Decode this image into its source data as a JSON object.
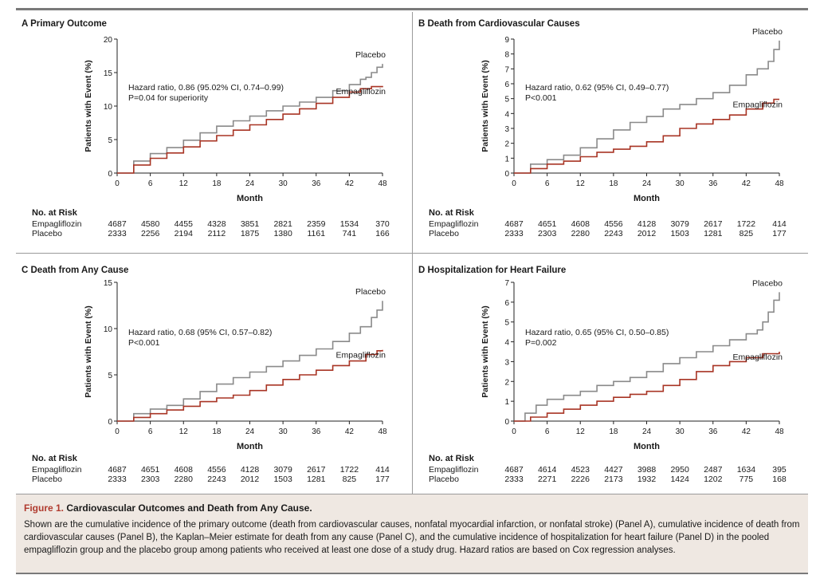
{
  "figure": {
    "caption_label": "Figure 1.",
    "caption_title": "Cardiovascular Outcomes and Death from Any Cause.",
    "caption_text": "Shown are the cumulative incidence of the primary outcome (death from cardiovascular causes, nonfatal myocardial infarction, or nonfatal stroke) (Panel A), cumulative incidence of death from cardiovascular causes (Panel B), the Kaplan–Meier estimate for death from any cause (Panel C), and the cumulative incidence of hospitalization for heart failure (Panel D) in the pooled empagliflozin group and the placebo group among patients who received at least one dose of a study drug. Hazard ratios are based on Cox regression analyses."
  },
  "colors": {
    "placebo": "#8a8a8a",
    "empagliflozin": "#a83424",
    "axis": "#222222"
  },
  "chart_data": [
    {
      "panel": "A",
      "type": "line",
      "title": "Primary Outcome",
      "xlabel": "Month",
      "ylabel": "Patients with Event (%)",
      "xlim": [
        0,
        48
      ],
      "ylim": [
        0,
        20
      ],
      "xticks": [
        0,
        6,
        12,
        18,
        24,
        30,
        36,
        42,
        48
      ],
      "yticks": [
        0,
        5,
        10,
        15,
        20
      ],
      "annotation": [
        "Hazard ratio, 0.86 (95.02% CI, 0.74–0.99)",
        "P=0.04 for superiority"
      ],
      "series": [
        {
          "name": "Placebo",
          "x": [
            0,
            3,
            6,
            9,
            12,
            15,
            18,
            21,
            24,
            27,
            30,
            33,
            36,
            39,
            42,
            44,
            45,
            46,
            47,
            48
          ],
          "y": [
            0,
            1.8,
            2.9,
            3.8,
            4.9,
            6.0,
            7.0,
            7.8,
            8.5,
            9.3,
            10.0,
            10.6,
            11.3,
            12.3,
            13.2,
            14.0,
            14.3,
            15.0,
            15.8,
            16.3
          ]
        },
        {
          "name": "Empagliflozin",
          "x": [
            0,
            3,
            6,
            9,
            12,
            15,
            18,
            21,
            24,
            27,
            30,
            33,
            36,
            39,
            42,
            44,
            46,
            48
          ],
          "y": [
            0,
            1.2,
            2.2,
            3.0,
            3.9,
            4.8,
            5.6,
            6.4,
            7.2,
            8.0,
            8.8,
            9.6,
            10.4,
            11.3,
            12.1,
            12.6,
            12.9,
            13.0
          ]
        }
      ],
      "risk": {
        "header": "No. at Risk",
        "rows": [
          {
            "label": "Empagliflozin",
            "values": [
              "4687",
              "4580",
              "4455",
              "4328",
              "3851",
              "2821",
              "2359",
              "1534",
              "370"
            ]
          },
          {
            "label": "Placebo",
            "values": [
              "2333",
              "2256",
              "2194",
              "2112",
              "1875",
              "1380",
              "1161",
              "741",
              "166"
            ]
          }
        ]
      }
    },
    {
      "panel": "B",
      "type": "line",
      "title": "Death from Cardiovascular Causes",
      "xlabel": "Month",
      "ylabel": "Patients with Event (%)",
      "xlim": [
        0,
        48
      ],
      "ylim": [
        0,
        9
      ],
      "xticks": [
        0,
        6,
        12,
        18,
        24,
        30,
        36,
        42,
        48
      ],
      "yticks": [
        0,
        1,
        2,
        3,
        4,
        5,
        6,
        7,
        8,
        9
      ],
      "annotation": [
        "Hazard ratio, 0.62 (95% CI, 0.49–0.77)",
        "P<0.001"
      ],
      "series": [
        {
          "name": "Placebo",
          "x": [
            0,
            3,
            6,
            9,
            12,
            15,
            18,
            21,
            24,
            27,
            30,
            33,
            36,
            39,
            42,
            44,
            46,
            47,
            48
          ],
          "y": [
            0,
            0.6,
            0.9,
            1.2,
            1.7,
            2.3,
            2.9,
            3.4,
            3.8,
            4.3,
            4.6,
            5.0,
            5.4,
            5.9,
            6.6,
            7.0,
            7.5,
            8.3,
            8.9
          ]
        },
        {
          "name": "Empagliflozin",
          "x": [
            0,
            3,
            6,
            9,
            12,
            15,
            18,
            21,
            24,
            27,
            30,
            33,
            36,
            39,
            42,
            45,
            47,
            48
          ],
          "y": [
            0,
            0.3,
            0.6,
            0.8,
            1.1,
            1.4,
            1.6,
            1.8,
            2.1,
            2.5,
            3.0,
            3.3,
            3.6,
            3.9,
            4.3,
            4.7,
            4.95,
            4.95
          ]
        }
      ],
      "risk": {
        "header": "No. at Risk",
        "rows": [
          {
            "label": "Empagliflozin",
            "values": [
              "4687",
              "4651",
              "4608",
              "4556",
              "4128",
              "3079",
              "2617",
              "1722",
              "414"
            ]
          },
          {
            "label": "Placebo",
            "values": [
              "2333",
              "2303",
              "2280",
              "2243",
              "2012",
              "1503",
              "1281",
              "825",
              "177"
            ]
          }
        ]
      }
    },
    {
      "panel": "C",
      "type": "line",
      "title": "Death from Any Cause",
      "xlabel": "Month",
      "ylabel": "Patients with Event (%)",
      "xlim": [
        0,
        48
      ],
      "ylim": [
        0,
        15
      ],
      "xticks": [
        0,
        6,
        12,
        18,
        24,
        30,
        36,
        42,
        48
      ],
      "yticks": [
        0,
        5,
        10,
        15
      ],
      "annotation": [
        "Hazard ratio, 0.68 (95% CI, 0.57–0.82)",
        "P<0.001"
      ],
      "series": [
        {
          "name": "Placebo",
          "x": [
            0,
            3,
            6,
            9,
            12,
            15,
            18,
            21,
            24,
            27,
            30,
            33,
            36,
            39,
            42,
            44,
            46,
            47,
            48
          ],
          "y": [
            0,
            0.8,
            1.3,
            1.7,
            2.4,
            3.2,
            4.0,
            4.7,
            5.3,
            5.9,
            6.5,
            7.1,
            7.8,
            8.6,
            9.5,
            10.2,
            11.2,
            12.0,
            13.0
          ]
        },
        {
          "name": "Empagliflozin",
          "x": [
            0,
            3,
            6,
            9,
            12,
            15,
            18,
            21,
            24,
            27,
            30,
            33,
            36,
            39,
            42,
            45,
            47,
            48
          ],
          "y": [
            0,
            0.4,
            0.8,
            1.2,
            1.6,
            2.1,
            2.5,
            2.8,
            3.3,
            3.9,
            4.5,
            5.0,
            5.5,
            6.0,
            6.5,
            7.2,
            7.6,
            7.7
          ]
        }
      ],
      "risk": {
        "header": "No. at Risk",
        "rows": [
          {
            "label": "Empagliflozin",
            "values": [
              "4687",
              "4651",
              "4608",
              "4556",
              "4128",
              "3079",
              "2617",
              "1722",
              "414"
            ]
          },
          {
            "label": "Placebo",
            "values": [
              "2333",
              "2303",
              "2280",
              "2243",
              "2012",
              "1503",
              "1281",
              "825",
              "177"
            ]
          }
        ]
      }
    },
    {
      "panel": "D",
      "type": "line",
      "title": "Hospitalization for Heart Failure",
      "xlabel": "Month",
      "ylabel": "Patients with Event (%)",
      "xlim": [
        0,
        48
      ],
      "ylim": [
        0,
        7
      ],
      "xticks": [
        0,
        6,
        12,
        18,
        24,
        30,
        36,
        42,
        48
      ],
      "yticks": [
        0,
        1,
        2,
        3,
        4,
        5,
        6,
        7
      ],
      "annotation": [
        "Hazard ratio, 0.65 (95% CI, 0.50–0.85)",
        "P=0.002"
      ],
      "series": [
        {
          "name": "Placebo",
          "x": [
            0,
            2,
            4,
            6,
            9,
            12,
            15,
            18,
            21,
            24,
            27,
            30,
            33,
            36,
            39,
            42,
            44,
            45,
            46,
            47,
            48
          ],
          "y": [
            0,
            0.4,
            0.8,
            1.1,
            1.3,
            1.5,
            1.8,
            2.0,
            2.2,
            2.5,
            2.9,
            3.2,
            3.5,
            3.8,
            4.1,
            4.4,
            4.6,
            5.0,
            5.5,
            6.1,
            6.5
          ]
        },
        {
          "name": "Empagliflozin",
          "x": [
            0,
            3,
            6,
            9,
            12,
            15,
            18,
            21,
            24,
            27,
            30,
            33,
            36,
            39,
            42,
            45,
            48
          ],
          "y": [
            0,
            0.2,
            0.4,
            0.6,
            0.8,
            1.0,
            1.2,
            1.35,
            1.5,
            1.8,
            2.1,
            2.5,
            2.8,
            3.0,
            3.2,
            3.4,
            3.5
          ]
        }
      ],
      "risk": {
        "header": "No. at Risk",
        "rows": [
          {
            "label": "Empagliflozin",
            "values": [
              "4687",
              "4614",
              "4523",
              "4427",
              "3988",
              "2950",
              "2487",
              "1634",
              "395"
            ]
          },
          {
            "label": "Placebo",
            "values": [
              "2333",
              "2271",
              "2226",
              "2173",
              "1932",
              "1424",
              "1202",
              "775",
              "168"
            ]
          }
        ]
      }
    }
  ]
}
